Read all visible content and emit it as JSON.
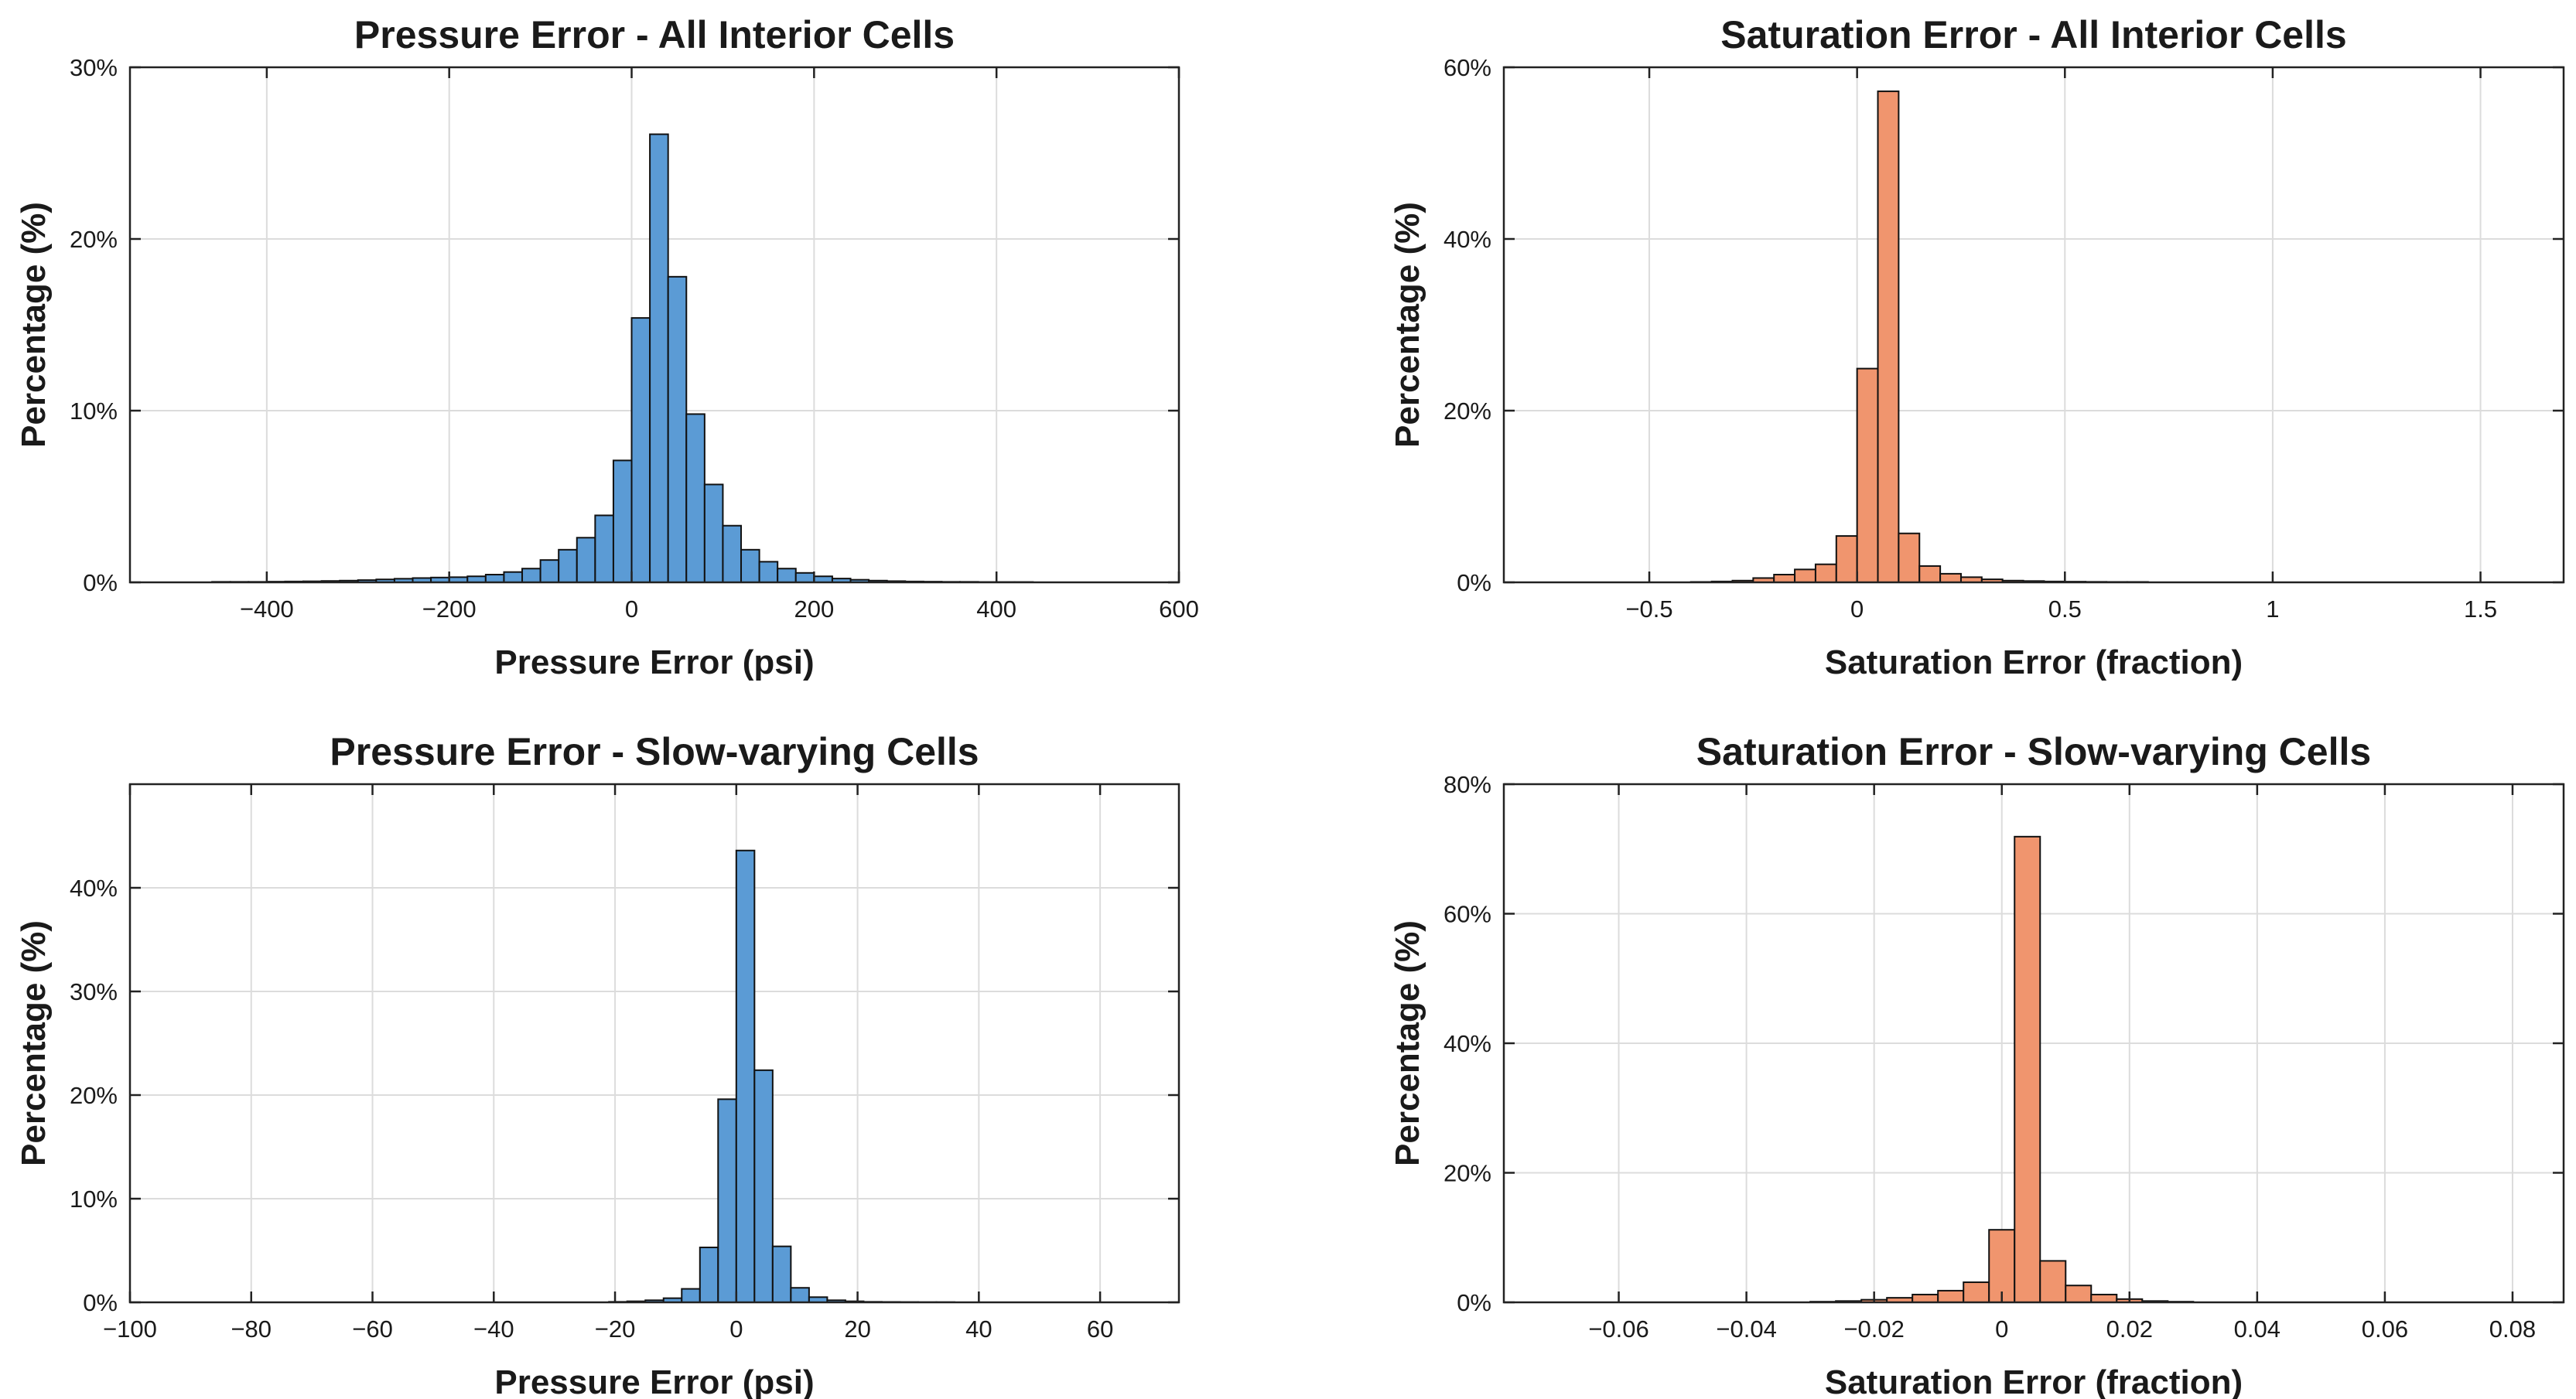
{
  "chart_data": [
    {
      "type": "bar",
      "title": "Pressure Error - All Interior Cells",
      "xlabel": "Pressure Error (psi)",
      "ylabel": "Percentage (%)",
      "xlim": [
        -550,
        600
      ],
      "ylim": [
        0,
        30
      ],
      "xticks": [
        -400,
        -200,
        0,
        200,
        400,
        600
      ],
      "xtick_labels": [
        "−400",
        "−200",
        "0",
        "200",
        "400",
        "600"
      ],
      "yticks": [
        0,
        10,
        20,
        30
      ],
      "ytick_labels": [
        "0%",
        "10%",
        "20%",
        "30%"
      ],
      "grid": true,
      "color": "#5b9bd5",
      "bin_edges": [
        -460,
        -440,
        -420,
        -400,
        -380,
        -360,
        -340,
        -320,
        -300,
        -280,
        -260,
        -240,
        -220,
        -200,
        -180,
        -160,
        -140,
        -120,
        -100,
        -80,
        -60,
        -40,
        -20,
        0,
        20,
        40,
        60,
        80,
        100,
        120,
        140,
        160,
        180,
        200,
        220,
        240,
        260,
        280,
        300,
        320,
        340,
        360,
        380,
        400,
        420,
        440
      ],
      "values": [
        0.03,
        0.03,
        0.03,
        0.04,
        0.05,
        0.06,
        0.08,
        0.1,
        0.13,
        0.17,
        0.21,
        0.25,
        0.28,
        0.3,
        0.35,
        0.45,
        0.6,
        0.8,
        1.3,
        1.9,
        2.6,
        3.9,
        7.1,
        15.4,
        26.1,
        17.8,
        9.8,
        5.7,
        3.3,
        1.9,
        1.2,
        0.8,
        0.55,
        0.35,
        0.22,
        0.15,
        0.1,
        0.07,
        0.05,
        0.04,
        0.03,
        0.03,
        0.02,
        0.02,
        0.02
      ]
    },
    {
      "type": "bar",
      "title": "Saturation Error - All Interior Cells",
      "xlabel": "Saturation Error (fraction)",
      "ylabel": "Percentage (%)",
      "xlim": [
        -0.85,
        1.7
      ],
      "ylim": [
        0,
        60
      ],
      "xticks": [
        -0.5,
        0,
        0.5,
        1,
        1.5
      ],
      "xtick_labels": [
        "−0.5",
        "0",
        "0.5",
        "1",
        "1.5"
      ],
      "yticks": [
        0,
        20,
        40,
        60
      ],
      "ytick_labels": [
        "0%",
        "20%",
        "40%",
        "60%"
      ],
      "grid": true,
      "color": "#f0956e",
      "bin_edges": [
        -0.4,
        -0.35,
        -0.3,
        -0.25,
        -0.2,
        -0.15,
        -0.1,
        -0.05,
        0,
        0.05,
        0.1,
        0.15,
        0.2,
        0.25,
        0.3,
        0.35,
        0.4,
        0.45,
        0.5,
        0.55,
        0.6,
        0.65,
        0.7
      ],
      "values": [
        0.05,
        0.1,
        0.2,
        0.5,
        0.9,
        1.5,
        2.1,
        5.4,
        24.9,
        57.2,
        5.7,
        1.9,
        1.0,
        0.6,
        0.35,
        0.2,
        0.15,
        0.1,
        0.08,
        0.06,
        0.05,
        0.05
      ]
    },
    {
      "type": "bar",
      "title": "Pressure Error - Slow-varying Cells",
      "xlabel": "Pressure Error (psi)",
      "ylabel": "Percentage (%)",
      "xlim": [
        -100,
        73
      ],
      "ylim": [
        0,
        50
      ],
      "xticks": [
        -100,
        -80,
        -60,
        -40,
        -20,
        0,
        20,
        40,
        60
      ],
      "xtick_labels": [
        "−100",
        "−80",
        "−60",
        "−40",
        "−20",
        "0",
        "20",
        "40",
        "60"
      ],
      "yticks": [
        0,
        10,
        20,
        30,
        40
      ],
      "ytick_labels": [
        "0%",
        "10%",
        "20%",
        "30%",
        "40%"
      ],
      "grid": true,
      "color": "#5b9bd5",
      "bin_edges": [
        -21,
        -18,
        -15,
        -12,
        -9,
        -6,
        -3,
        0,
        3,
        6,
        9,
        12,
        15,
        18,
        21,
        24,
        27,
        30,
        33,
        36
      ],
      "values": [
        0.05,
        0.1,
        0.2,
        0.4,
        1.3,
        5.3,
        19.6,
        43.6,
        22.4,
        5.4,
        1.4,
        0.5,
        0.2,
        0.1,
        0.05,
        0.04,
        0.03,
        0.02,
        0.02
      ]
    },
    {
      "type": "bar",
      "title": "Saturation Error - Slow-varying Cells",
      "xlabel": "Saturation Error (fraction)",
      "ylabel": "Percentage (%)",
      "xlim": [
        -0.078,
        0.088
      ],
      "ylim": [
        0,
        80
      ],
      "xticks": [
        -0.06,
        -0.04,
        -0.02,
        0,
        0.02,
        0.04,
        0.06,
        0.08
      ],
      "xtick_labels": [
        "−0.06",
        "−0.04",
        "−0.02",
        "0",
        "0.02",
        "0.04",
        "0.06",
        "0.08"
      ],
      "yticks": [
        0,
        20,
        40,
        60,
        80
      ],
      "ytick_labels": [
        "0%",
        "20%",
        "40%",
        "60%",
        "80%"
      ],
      "grid": true,
      "color": "#f0956e",
      "bin_edges": [
        -0.03,
        -0.026,
        -0.022,
        -0.018,
        -0.014,
        -0.01,
        -0.006,
        -0.002,
        0.002,
        0.006,
        0.01,
        0.014,
        0.018,
        0.022,
        0.026,
        0.03
      ],
      "values": [
        0.1,
        0.2,
        0.4,
        0.7,
        1.2,
        1.8,
        3.1,
        11.2,
        71.9,
        6.4,
        2.6,
        1.2,
        0.5,
        0.2,
        0.1
      ]
    }
  ]
}
